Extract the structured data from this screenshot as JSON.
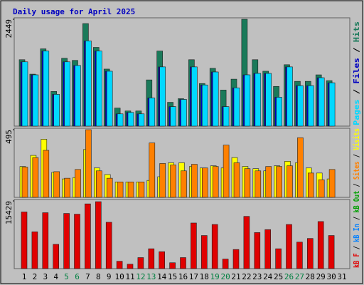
{
  "title": "Daily usage for April 2025",
  "legend_separator": " / ",
  "categories": [
    "1",
    "2",
    "3",
    "4",
    "5",
    "6",
    "7",
    "8",
    "9",
    "10",
    "11",
    "12",
    "13",
    "14",
    "15",
    "16",
    "17",
    "18",
    "19",
    "20",
    "21",
    "22",
    "23",
    "24",
    "25",
    "26",
    "27",
    "28",
    "29",
    "30",
    "31"
  ],
  "category_colors": [
    "#000000",
    "#000000",
    "#000000",
    "#000000",
    "#008040",
    "#008040",
    "#000000",
    "#000000",
    "#000000",
    "#000000",
    "#000000",
    "#008040",
    "#008040",
    "#000000",
    "#000000",
    "#000000",
    "#000000",
    "#000000",
    "#008040",
    "#008040",
    "#000000",
    "#000000",
    "#000000",
    "#000000",
    "#000000",
    "#008040",
    "#008040",
    "#000000",
    "#000000",
    "#000000",
    "#000000"
  ],
  "chart_data": [
    {
      "type": "bar",
      "ylim": [
        0,
        2449
      ],
      "yticks": [
        2449
      ],
      "series": [
        {
          "name": "Hits",
          "color": "#1a7a5a",
          "values": [
            1522,
            1191,
            1771,
            794,
            1555,
            1506,
            2350,
            1804,
            1307,
            414,
            347,
            347,
            1059,
            1721,
            546,
            629,
            1522,
            976,
            1324,
            827,
            1076,
            2449,
            1522,
            1258,
            910,
            1407,
            1026,
            1026,
            1175,
            1042,
            0
          ]
        },
        {
          "name": "Files",
          "color": "#0000c0",
          "values": [
            1473,
            1175,
            1721,
            728,
            1473,
            1390,
            1953,
            1721,
            1258,
            281,
            314,
            281,
            645,
            1357,
            447,
            612,
            1357,
            943,
            1241,
            447,
            877,
            1175,
            1208,
            1208,
            662,
            1357,
            927,
            927,
            1109,
            993,
            0
          ]
        },
        {
          "name": "Pages",
          "color": "#00d8ff",
          "values": [
            1473,
            1175,
            1721,
            728,
            1473,
            1390,
            1953,
            1721,
            1258,
            281,
            314,
            281,
            645,
            1357,
            447,
            612,
            1357,
            943,
            1241,
            447,
            877,
            1175,
            1208,
            1208,
            662,
            1357,
            927,
            927,
            1109,
            993,
            0
          ]
        }
      ]
    },
    {
      "type": "bar",
      "ylim": [
        0,
        495
      ],
      "yticks": [
        495
      ],
      "series": [
        {
          "name": "Visits",
          "color": "#ffff00",
          "values": [
            226,
            307,
            425,
            183,
            135,
            145,
            350,
            215,
            167,
            113,
            113,
            113,
            124,
            151,
            253,
            253,
            226,
            215,
            231,
            215,
            291,
            226,
            210,
            194,
            231,
            264,
            253,
            215,
            178,
            135,
            0
          ]
        },
        {
          "name": "Sites",
          "color": "#ff8000",
          "values": [
            221,
            291,
            344,
            188,
            140,
            204,
            495,
            194,
            140,
            113,
            113,
            113,
            398,
            248,
            237,
            194,
            242,
            215,
            226,
            382,
            253,
            210,
            194,
            226,
            226,
            231,
            436,
            178,
            129,
            204,
            0
          ]
        }
      ],
      "legend_only": [
        {
          "name": "kB Out",
          "color": "#00a000"
        }
      ]
    },
    {
      "type": "bar",
      "ylim": [
        0,
        15429
      ],
      "yticks": [
        15429
      ],
      "series": [
        {
          "name": "kB F",
          "color": "#e00000",
          "values": [
            12913,
            8385,
            12746,
            5534,
            12578,
            12410,
            14758,
            15261,
            10565,
            1677,
            1006,
            2516,
            4528,
            3857,
            1342,
            2516,
            10398,
            7547,
            10062,
            2180,
            4360,
            11907,
            8218,
            8888,
            4528,
            10062,
            6037,
            6876,
            10733,
            7547,
            0
          ]
        }
      ],
      "legend_only": [
        {
          "name": "kB In",
          "color": "#0080ff"
        }
      ]
    }
  ]
}
